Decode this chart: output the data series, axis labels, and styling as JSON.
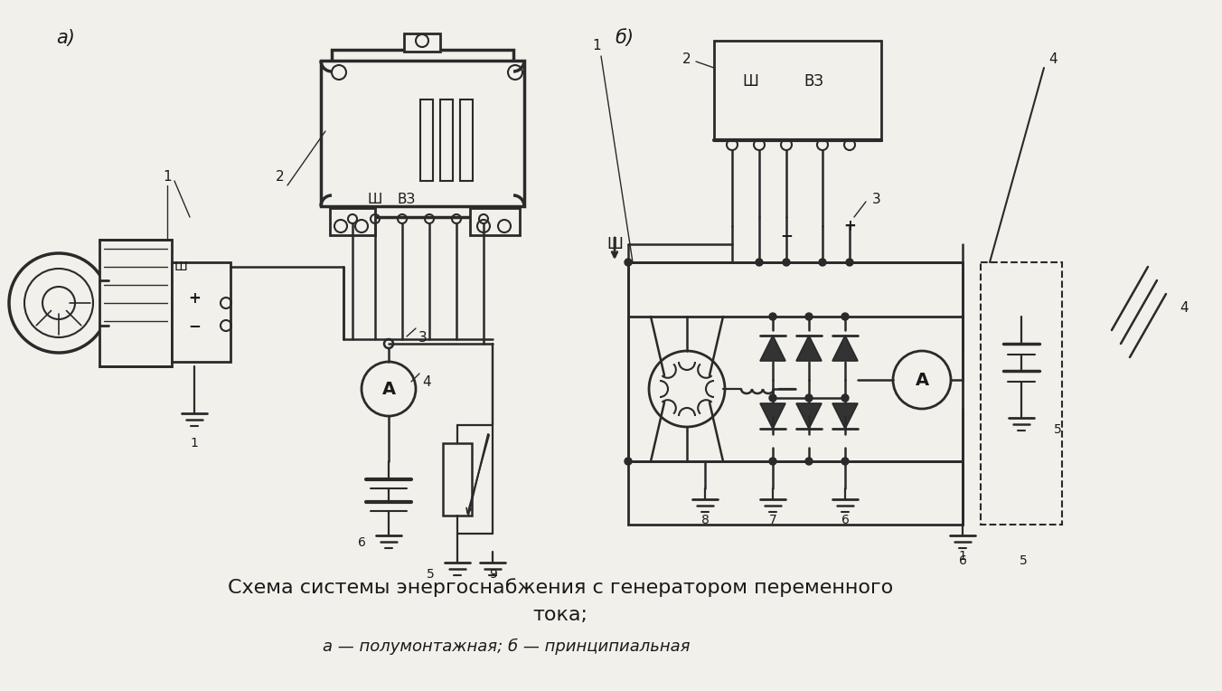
{
  "background_color": "#f2f0eb",
  "title_line1": "Схема системы энергоснабжения с генератором переменного",
  "title_line2": "тока;",
  "subtitle": "а — полумонтажная; б — принципиальная",
  "label_a": "а)",
  "label_b": "б)",
  "text_color": "#1a1a1a",
  "line_color": "#2a2a2a",
  "title_fontsize": 16,
  "subtitle_fontsize": 13,
  "label_fontsize": 15
}
